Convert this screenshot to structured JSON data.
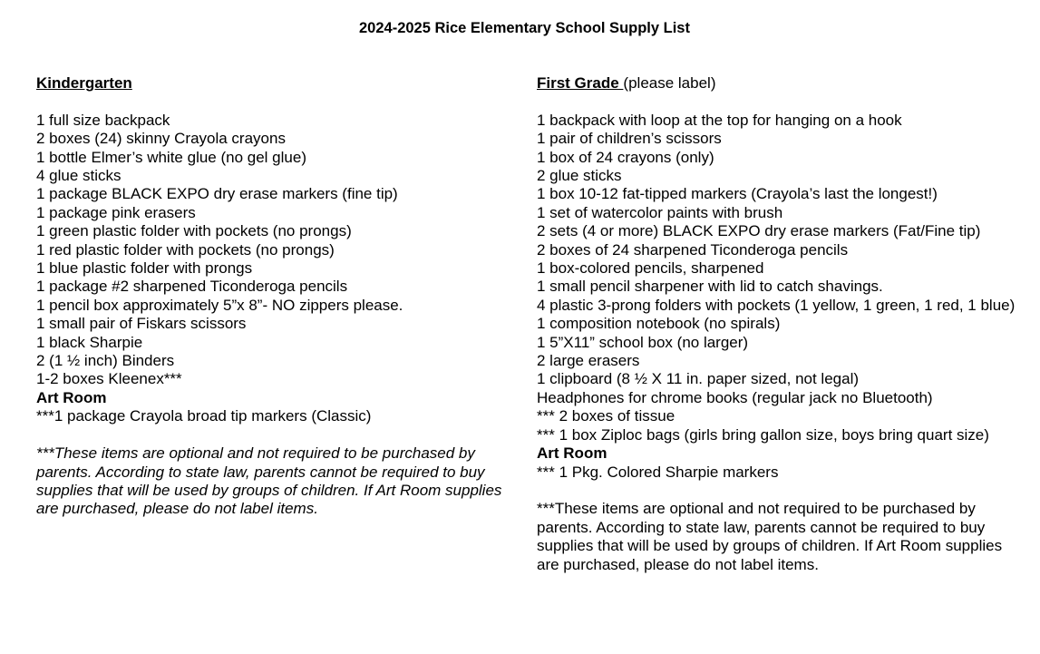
{
  "title": "2024-2025 Rice Elementary School Supply List",
  "kindergarten": {
    "heading": "Kindergarten",
    "heading_suffix": "",
    "items": [
      "1 full size backpack",
      "2 boxes (24) skinny Crayola crayons",
      "1 bottle Elmer’s white glue (no gel glue)",
      "4 glue sticks",
      "1 package BLACK EXPO dry erase markers (fine tip)",
      "1 package pink erasers",
      "1 green plastic folder with pockets (no prongs)",
      "1 red plastic folder with pockets (no prongs)",
      "1 blue plastic folder with prongs",
      "1 package #2 sharpened Ticonderoga pencils",
      "1 pencil box approximately 5”x 8”- NO zippers please.",
      "1 small pair of Fiskars scissors",
      "1 black Sharpie",
      "2 (1 ½ inch) Binders",
      "1-2 boxes Kleenex***"
    ],
    "art_heading": "Art Room",
    "art_items": [
      "***1 package Crayola broad tip markers (Classic)"
    ],
    "note": "***These items are optional and not required to be purchased by parents. According to state law, parents cannot be required to buy supplies that will be used by groups of children. If Art Room supplies are purchased, please do not label items."
  },
  "first_grade": {
    "heading": "First Grade ",
    "heading_suffix": "(please label)",
    "items": [
      "1 backpack with loop at the top for hanging on a hook",
      "1 pair of children’s scissors",
      "1 box of 24 crayons (only)",
      "2 glue sticks",
      "1 box 10-12 fat-tipped markers (Crayola’s last the longest!)",
      "1 set of watercolor paints with brush",
      "2 sets (4 or more) BLACK EXPO dry erase markers (Fat/Fine tip)",
      "2 boxes of 24 sharpened Ticonderoga pencils",
      "1 box-colored pencils, sharpened",
      "1 small pencil sharpener with lid to catch shavings.",
      "4 plastic 3-prong folders with pockets (1 yellow, 1 green, 1 red, 1 blue)",
      "1 composition notebook (no spirals)",
      "1 5”X11” school box (no larger)",
      "2 large erasers",
      "1 clipboard (8 ½ X 11 in. paper sized, not legal)",
      "Headphones for chrome books (regular jack no Bluetooth)",
      "*** 2 boxes of tissue",
      "*** 1 box Ziploc bags (girls bring gallon size, boys bring quart size)"
    ],
    "art_heading": "Art Room",
    "art_items": [
      "*** 1 Pkg. Colored Sharpie markers"
    ],
    "note": "***These items are optional and not required to be purchased by parents. According to state law, parents cannot be required to buy supplies that will be used by groups of children. If Art Room supplies are purchased, please do not label items."
  }
}
